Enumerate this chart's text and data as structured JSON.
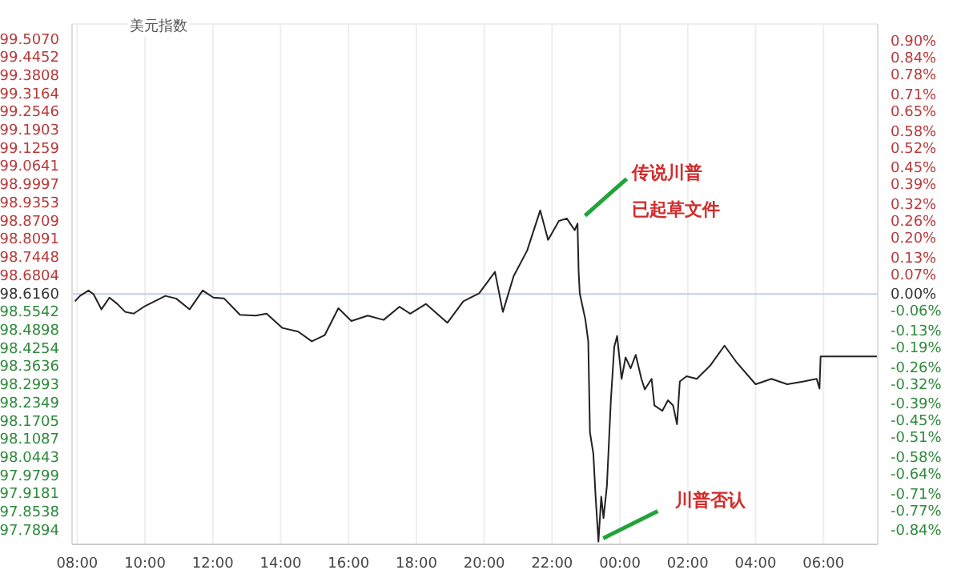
{
  "chart_data": {
    "type": "line",
    "title": "美元指数",
    "x": [
      "2000-01-01T07:56",
      "2000-01-01T08:05",
      "2000-01-01T08:20",
      "2000-01-01T08:29",
      "2000-01-01T08:43",
      "2000-01-01T08:57",
      "2000-01-01T09:11",
      "2000-01-01T09:25",
      "2000-01-01T09:40",
      "2000-01-01T09:58",
      "2000-01-01T10:17",
      "2000-01-01T10:36",
      "2000-01-01T10:55",
      "2000-01-01T11:19",
      "2000-01-01T11:42",
      "2000-01-01T12:01",
      "2000-01-01T12:20",
      "2000-01-01T12:48",
      "2000-01-01T13:16",
      "2000-01-01T13:35",
      "2000-01-01T14:03",
      "2000-01-01T14:31",
      "2000-01-01T14:55",
      "2000-01-01T15:18",
      "2000-01-01T15:42",
      "2000-01-01T16:05",
      "2000-01-01T16:34",
      "2000-01-01T17:02",
      "2000-01-01T17:30",
      "2000-01-01T17:49",
      "2000-01-01T18:17",
      "2000-01-01T18:55",
      "2000-01-01T19:23",
      "2000-01-01T19:51",
      "2000-01-01T20:19",
      "2000-01-01T20:33",
      "2000-01-01T20:52",
      "2000-01-01T21:16",
      "2000-01-01T21:39",
      "2000-01-01T21:53",
      "2000-01-01T22:12",
      "2000-01-01T22:26",
      "2000-01-01T22:40",
      "2000-01-01T22:45",
      "2000-01-01T22:47",
      "2000-01-01T22:49",
      "2000-01-01T22:59",
      "2000-01-01T23:04",
      "2000-01-01T23:07",
      "2000-01-01T23:13",
      "2000-01-01T23:17",
      "2000-01-01T23:22",
      "2000-01-01T23:27",
      "2000-01-01T23:31",
      "2000-01-01T23:37",
      "2000-01-01T23:44",
      "2000-01-01T23:50",
      "2000-01-01T23:55",
      "2000-01-02T00:03",
      "2000-01-02T00:10",
      "2000-01-02T00:19",
      "2000-01-02T00:28",
      "2000-01-02T00:38",
      "2000-01-02T00:44",
      "2000-01-02T00:56",
      "2000-01-02T01:01",
      "2000-01-02T01:15",
      "2000-01-02T01:25",
      "2000-01-02T01:34",
      "2000-01-02T01:41",
      "2000-01-02T01:46",
      "2000-01-02T01:58",
      "2000-01-02T02:16",
      "2000-01-02T02:40",
      "2000-01-02T03:05",
      "2000-01-02T03:27",
      "2000-01-02T04:00",
      "2000-01-02T04:28",
      "2000-01-02T04:56",
      "2000-01-02T05:25",
      "2000-01-02T05:48",
      "2000-01-02T05:53",
      "2000-01-02T05:55",
      "2000-01-02T07:36"
    ],
    "series": [
      {
        "color": "#222222",
        "values": [
          98.59,
          98.609,
          98.628,
          98.615,
          98.562,
          98.603,
          98.581,
          98.553,
          98.547,
          98.571,
          98.59,
          98.609,
          98.6,
          98.562,
          98.628,
          98.603,
          98.6,
          98.543,
          98.54,
          98.547,
          98.497,
          98.484,
          98.45,
          98.472,
          98.566,
          98.521,
          98.54,
          98.525,
          98.571,
          98.547,
          98.581,
          98.515,
          98.59,
          98.618,
          98.693,
          98.553,
          98.678,
          98.768,
          98.908,
          98.805,
          98.871,
          98.88,
          98.839,
          98.862,
          98.693,
          98.618,
          98.525,
          98.45,
          98.132,
          98.057,
          97.907,
          97.75,
          97.907,
          97.832,
          97.945,
          98.244,
          98.431,
          98.469,
          98.319,
          98.394,
          98.356,
          98.403,
          98.319,
          98.282,
          98.319,
          98.226,
          98.207,
          98.244,
          98.226,
          98.16,
          98.31,
          98.328,
          98.319,
          98.366,
          98.435,
          98.375,
          98.3,
          98.319,
          98.3,
          98.31,
          98.319,
          98.285,
          98.397,
          98.397
        ]
      }
    ],
    "xlim": [
      "2000-01-01T07:51",
      "2000-01-02T07:36"
    ],
    "xticks": [
      {
        "value": "2000-01-01T08:00",
        "label": "08:00"
      },
      {
        "value": "2000-01-01T10:00",
        "label": "10:00"
      },
      {
        "value": "2000-01-01T12:00",
        "label": "12:00"
      },
      {
        "value": "2000-01-01T14:00",
        "label": "14:00"
      },
      {
        "value": "2000-01-01T16:00",
        "label": "16:00"
      },
      {
        "value": "2000-01-01T18:00",
        "label": "18:00"
      },
      {
        "value": "2000-01-01T20:00",
        "label": "20:00"
      },
      {
        "value": "2000-01-01T22:00",
        "label": "22:00"
      },
      {
        "value": "2000-01-02T00:00",
        "label": "00:00"
      },
      {
        "value": "2000-01-02T02:00",
        "label": "02:00"
      },
      {
        "value": "2000-01-02T04:00",
        "label": "04:00"
      },
      {
        "value": "2000-01-02T06:00",
        "label": "06:00"
      }
    ],
    "ylim": [
      97.74,
      99.56
    ],
    "yticks": [
      {
        "value": 99.507,
        "label": "99.5070"
      },
      99.4452,
      {
        "value": 99.3808,
        "label": "99.3808"
      },
      99.3164,
      99.2546,
      99.1903,
      99.1259,
      99.0641,
      98.9997,
      98.9353,
      98.8709,
      98.8091,
      98.7448,
      98.6804,
      {
        "value": 98.616,
        "label": "98.6160"
      },
      98.5542,
      98.4898,
      98.4254,
      98.3636,
      98.2993,
      98.2349,
      98.1705,
      98.1087,
      98.0443,
      97.9799,
      97.9181,
      97.8538,
      97.7894
    ],
    "y2lim": [
      -0.89,
      0.96
    ],
    "y2ticks": [
      {
        "value": 0.9,
        "label": "0.90%"
      },
      {
        "value": 0.84,
        "label": "0.84%"
      },
      {
        "value": 0.78,
        "label": "0.78%"
      },
      {
        "value": 0.71,
        "label": "0.71%"
      },
      {
        "value": 0.65,
        "label": "0.65%"
      },
      {
        "value": 0.58,
        "label": "0.58%"
      },
      {
        "value": 0.52,
        "label": "0.52%"
      },
      {
        "value": 0.45,
        "label": "0.45%"
      },
      {
        "value": 0.39,
        "label": "0.39%"
      },
      {
        "value": 0.32,
        "label": "0.32%"
      },
      {
        "value": 0.26,
        "label": "0.26%"
      },
      {
        "value": 0.2,
        "label": "0.20%"
      },
      {
        "value": 0.13,
        "label": "0.13%"
      },
      {
        "value": 0.07,
        "label": "0.07%"
      },
      {
        "value": 0,
        "label": "0.00%"
      },
      {
        "value": -0.06,
        "label": "-0.06%"
      },
      {
        "value": -0.13,
        "label": "-0.13%"
      },
      {
        "value": -0.19,
        "label": "-0.19%"
      },
      {
        "value": -0.26,
        "label": "-0.26%"
      },
      {
        "value": -0.32,
        "label": "-0.32%"
      },
      {
        "value": -0.39,
        "label": "-0.39%"
      },
      {
        "value": -0.45,
        "label": "-0.45%"
      },
      {
        "value": -0.51,
        "label": "-0.51%"
      },
      {
        "value": -0.58,
        "label": "-0.58%"
      },
      {
        "value": -0.64,
        "label": "-0.64%"
      },
      {
        "value": -0.71,
        "label": "-0.71%"
      },
      {
        "value": -0.77,
        "label": "-0.77%"
      },
      {
        "value": -0.84,
        "label": "-0.84%"
      }
    ],
    "ref_lines": [
      {
        "axis": "y",
        "value": 98.616,
        "color": "#c8cce8"
      }
    ],
    "annotations": [
      {
        "text": "传说川普",
        "x": "2000-01-01T22:47",
        "y": 98.862
      },
      "已起草文件",
      {
        "text": "川普否认",
        "x": "2000-01-01T23:22",
        "y": 97.75
      }
    ],
    "grid": true,
    "legend": false,
    "marker": "none",
    "line_style": "solid"
  }
}
